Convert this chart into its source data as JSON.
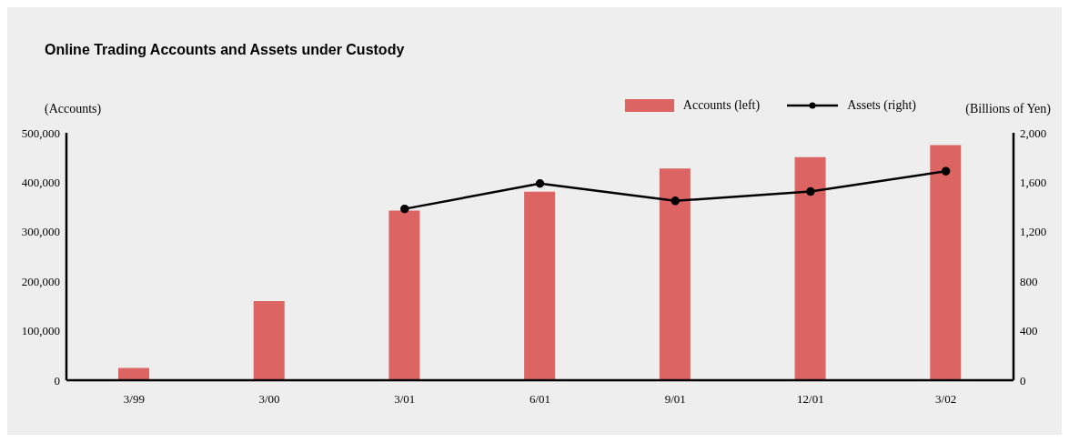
{
  "chart_data": {
    "type": "bar",
    "title": "Online Trading Accounts and Assets under Custody",
    "ylabel": "(Accounts)",
    "y2label": "(Billions of Yen)",
    "categories": [
      "3/99",
      "3/00",
      "3/01",
      "6/01",
      "9/01",
      "12/01",
      "3/02"
    ],
    "series": [
      {
        "name": "Accounts (left)",
        "color": "#dc6462",
        "values": [
          25000,
          160000,
          343000,
          381000,
          428000,
          451000,
          475000
        ]
      },
      {
        "name": "Assets (right)",
        "type": "line",
        "axis": "y2",
        "color": "#000000",
        "values": [
          null,
          null,
          1385,
          1590,
          1450,
          1525,
          1690
        ]
      }
    ],
    "ylim": [
      0,
      500000
    ],
    "yticks": [
      0,
      {
        "value": 100000,
        "label": "100,000"
      },
      {
        "value": 200000,
        "label": "200,000"
      },
      {
        "value": 300000,
        "label": "300,000"
      },
      {
        "value": 400000,
        "label": "400,000"
      },
      {
        "value": 500000,
        "label": "500,000"
      }
    ],
    "y2lim": [
      0,
      2000
    ],
    "y2ticks": [
      0,
      400,
      800,
      {
        "value": 1200,
        "label": "1,200"
      },
      {
        "value": 1600,
        "label": "1,600"
      },
      {
        "value": 2000,
        "label": "2,000"
      }
    ],
    "marker": "circle",
    "line_style": "solid",
    "legend": "top right",
    "grid": false
  }
}
